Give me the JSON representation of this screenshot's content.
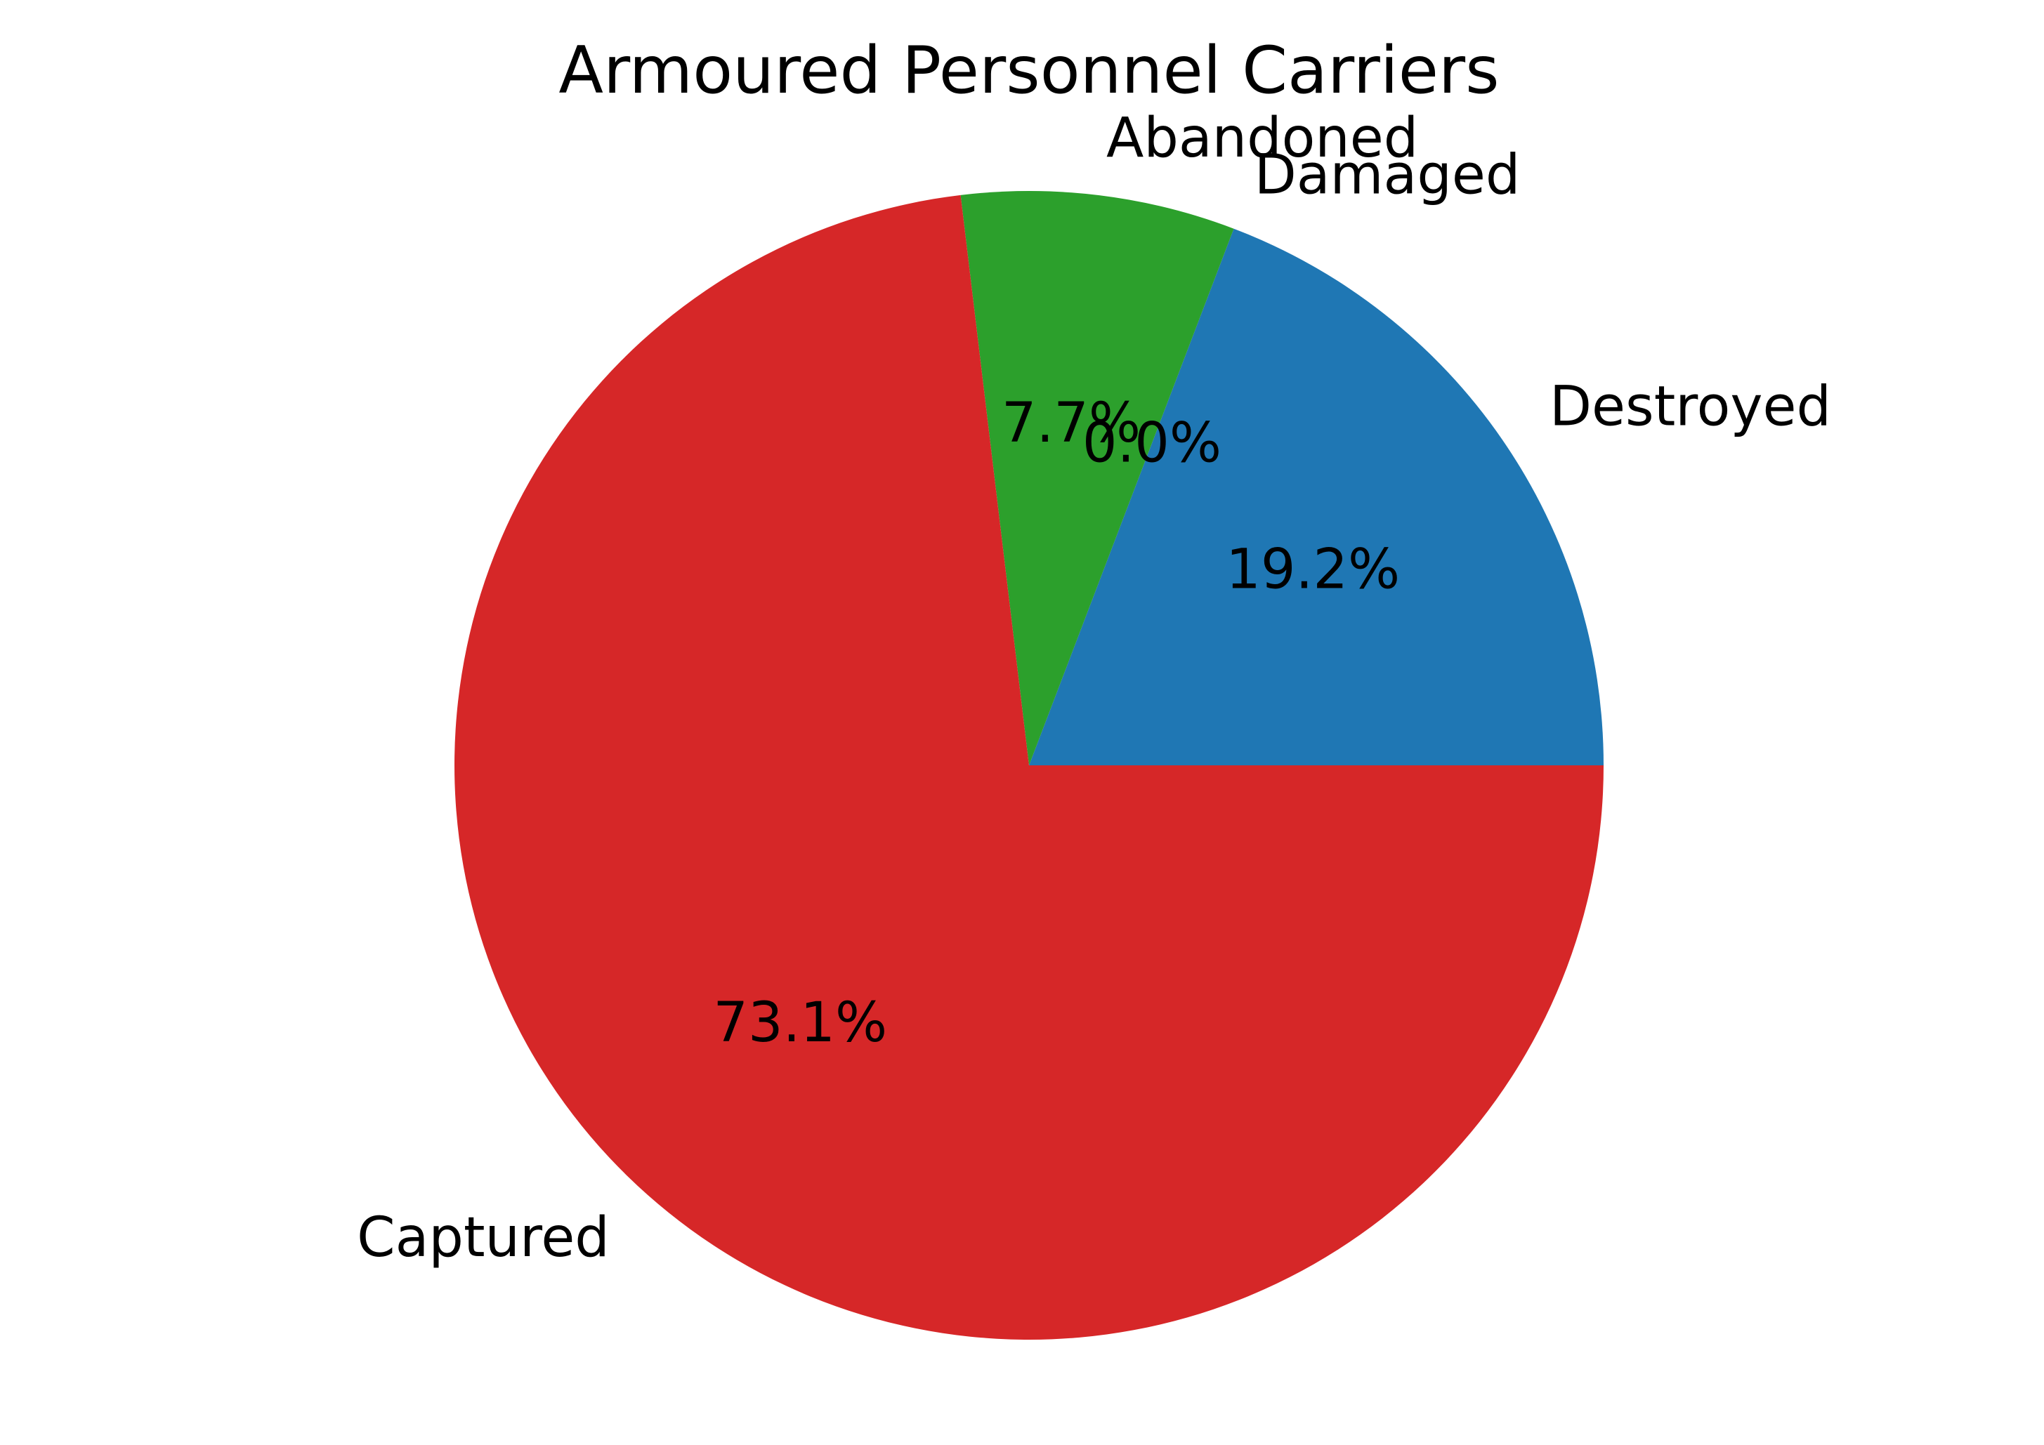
{
  "chart_data": {
    "type": "pie",
    "title": "Armoured Personnel Carriers",
    "categories": [
      "Destroyed",
      "Damaged",
      "Abandoned",
      "Captured"
    ],
    "values": [
      19.2,
      0.0,
      7.7,
      73.1
    ],
    "percent_labels": [
      "19.2%",
      "0.0%",
      "7.7%",
      "73.1%"
    ],
    "colors": [
      "#1f77b4",
      "#ff7f0e",
      "#2ca02c",
      "#d62728"
    ],
    "start_angle_deg": 0,
    "direction": "counterclockwise",
    "legend": "none"
  }
}
